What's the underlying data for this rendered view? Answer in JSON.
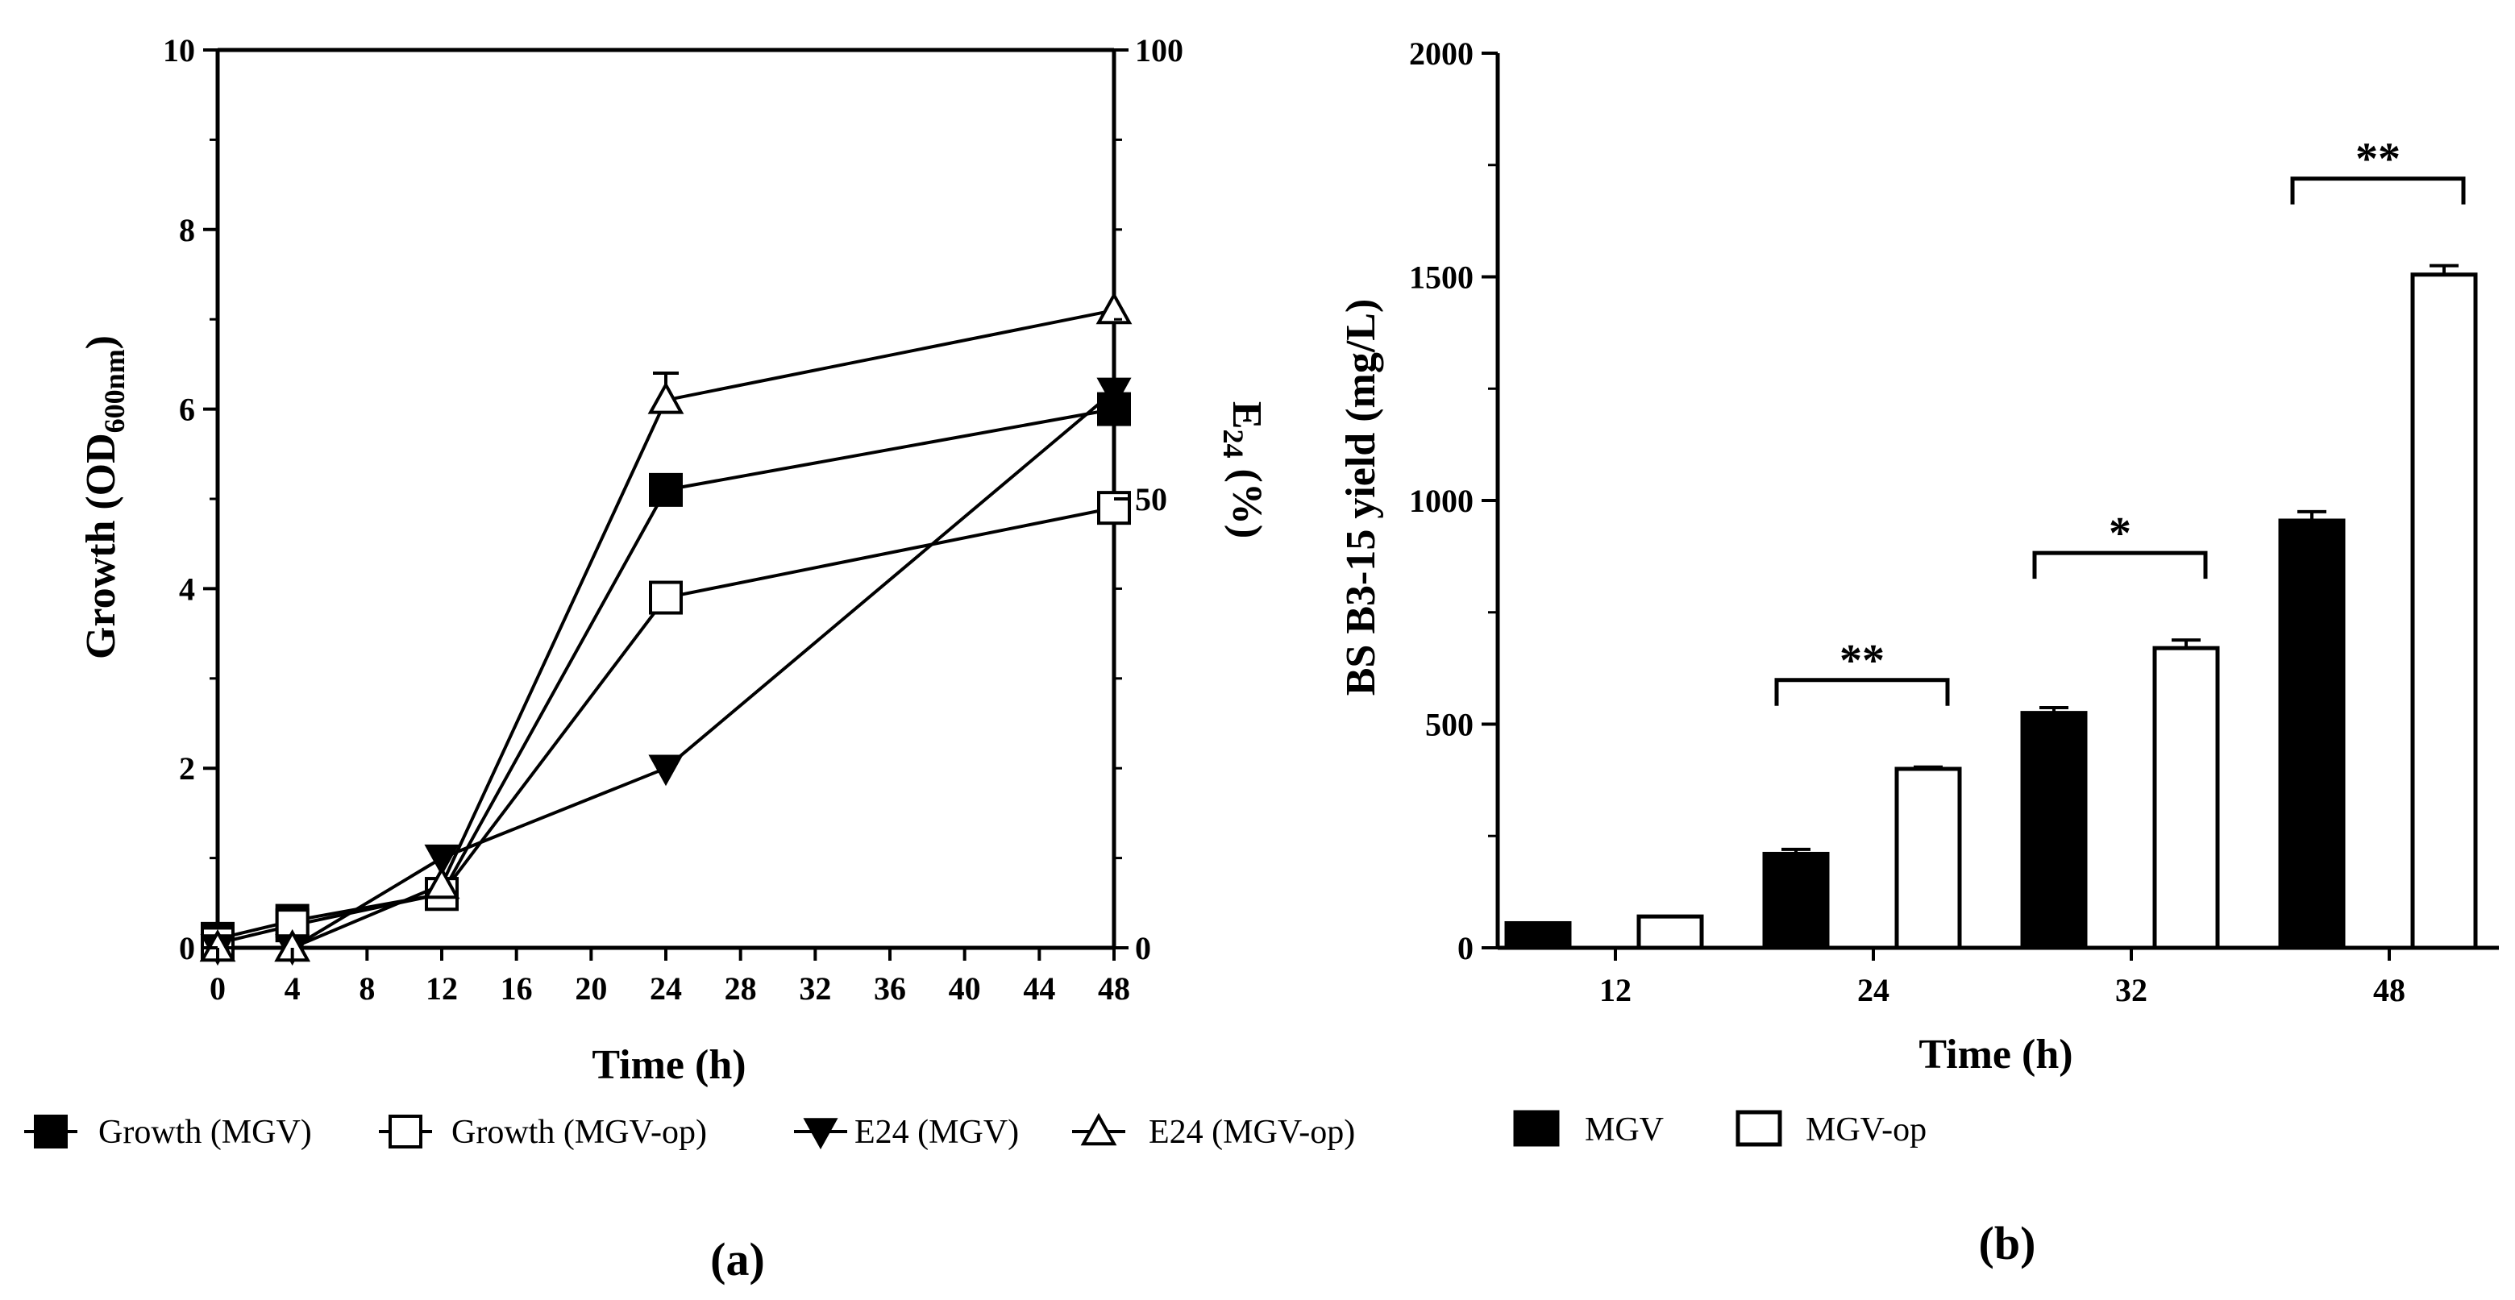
{
  "chart_data": [
    {
      "panel_label": "(a)",
      "type": "line",
      "xlabel": "Time (h)",
      "ylabel_main": "Growth (OD",
      "ylabel_sub": "600nm",
      "ylabel_close": ")",
      "y2label_main": "E",
      "y2label_sub": "24",
      "y2label_close": " (%)",
      "x_ticks": [
        0,
        4,
        8,
        12,
        16,
        20,
        24,
        28,
        32,
        36,
        40,
        44,
        48
      ],
      "xlim": [
        0,
        48
      ],
      "ylim": [
        0,
        10
      ],
      "y_ticks": [
        0,
        2,
        4,
        6,
        8,
        10
      ],
      "y2lim": [
        0,
        100
      ],
      "y2_ticks": [
        0,
        50,
        100
      ],
      "series": [
        {
          "name": "Growth (MGV)",
          "axis": "left",
          "marker": "square-filled",
          "x": [
            0,
            4,
            12,
            24,
            48
          ],
          "y": [
            0.1,
            0.3,
            0.6,
            5.1,
            6.0
          ],
          "err": [
            0,
            0,
            0,
            0,
            0
          ]
        },
        {
          "name": "Growth (MGV-op)",
          "axis": "left",
          "marker": "square-open",
          "x": [
            0,
            4,
            12,
            24,
            48
          ],
          "y": [
            0.05,
            0.25,
            0.6,
            3.9,
            4.9
          ],
          "err": [
            0,
            0,
            0,
            0,
            0
          ]
        },
        {
          "name": "E24 (MGV)",
          "axis": "right",
          "marker": "triangle-down-filled",
          "x": [
            0,
            4,
            12,
            24,
            48
          ],
          "y": [
            0,
            0,
            10,
            20,
            62
          ],
          "err": [
            0,
            0,
            0,
            0,
            0
          ]
        },
        {
          "name": "E24 (MGV-op)",
          "axis": "right",
          "marker": "triangle-up-open",
          "x": [
            0,
            4,
            12,
            24,
            48
          ],
          "y": [
            0,
            0,
            7,
            61,
            71
          ],
          "err": [
            0,
            0,
            0,
            3,
            0
          ]
        }
      ]
    },
    {
      "panel_label": "(b)",
      "type": "bar",
      "xlabel": "Time (h)",
      "ylabel": "BS B3-15 yield (mg/L)",
      "categories": [
        "12",
        "24",
        "32",
        "48"
      ],
      "ylim": [
        0,
        2000
      ],
      "y_ticks": [
        0,
        500,
        1000,
        1500,
        2000
      ],
      "series": [
        {
          "name": "MGV",
          "color": "#000000",
          "values": [
            55,
            210,
            525,
            955
          ],
          "err": [
            0,
            10,
            12,
            20
          ]
        },
        {
          "name": "MGV-op",
          "color": "#ffffff",
          "values": [
            70,
            400,
            670,
            1505
          ],
          "err": [
            0,
            4,
            18,
            20
          ]
        }
      ],
      "significance": [
        "",
        "**",
        "*",
        "**"
      ]
    }
  ]
}
